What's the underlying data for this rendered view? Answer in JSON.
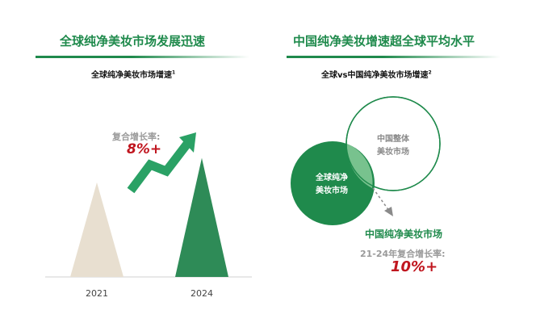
{
  "left_panel": {
    "title": "全球纯净美妆市场发展迅速",
    "subtitle": "全球纯净美妆市场增速",
    "footnote": "1",
    "cagr_label": "复合增长率:",
    "cagr_value": "8%+"
  },
  "right_panel": {
    "title": "中国纯净美妆增速超全球平均水平",
    "subtitle": "全球vs中国纯净美妆市场增速",
    "footnote": "2",
    "circle_large_line1": "中国整体",
    "circle_large_line2": "美妆市场",
    "circle_small_line1": "全球纯净",
    "circle_small_line2": "美妆市场",
    "highlight_title": "中国纯净美妆市场",
    "cagr_label": "21-24年复合增长率:",
    "cagr_value": "10%+"
  },
  "colors": {
    "brand_green": "#1f8a4c",
    "cream": "#e8dfd0",
    "accent_red": "#c0161f",
    "gray_text": "#9a9a9a"
  },
  "chart_data": {
    "type": "bar",
    "categories": [
      "2021",
      "2024"
    ],
    "values": [
      1.0,
      1.26
    ],
    "title": "全球纯净美妆市场增速",
    "annotation": "复合增长率: 8%+",
    "bar_colors": [
      "#e8dfd0",
      "#2e8b57"
    ],
    "bar_shape": "triangle"
  }
}
